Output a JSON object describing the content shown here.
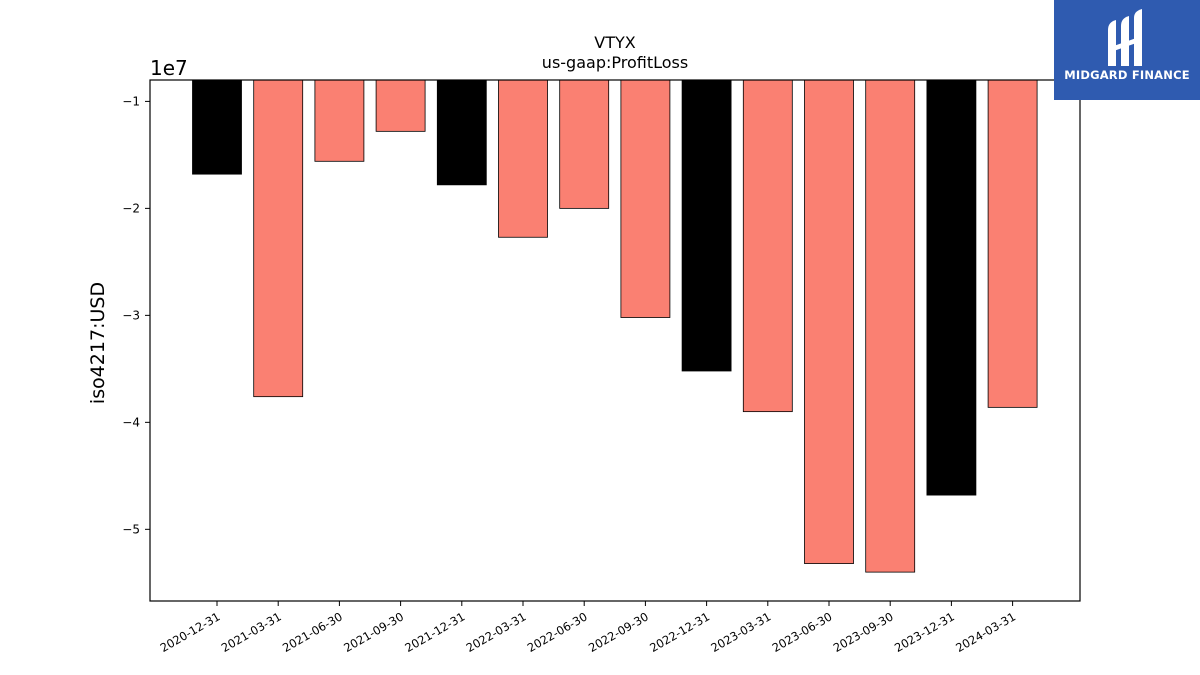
{
  "branding": {
    "logo_text": "MIDGARD FINANCE",
    "logo_icon": "midgard-logo-icon",
    "logo_bg": "#2f5bb0"
  },
  "chart_data": {
    "type": "bar",
    "title": "VTYX",
    "subtitle": "us-gaap:ProfitLoss",
    "xlabel": "",
    "ylabel": "iso4217:USD",
    "scale_note": "1e7",
    "categories": [
      "2020-12-31",
      "2021-03-31",
      "2021-06-30",
      "2021-09-30",
      "2021-12-31",
      "2022-03-31",
      "2022-06-30",
      "2022-09-30",
      "2022-12-31",
      "2023-03-31",
      "2023-06-30",
      "2023-09-30",
      "2023-12-31",
      "2024-03-31"
    ],
    "values": [
      -16800000,
      -37600000,
      -15600000,
      -12800000,
      -17800000,
      -22700000,
      -20000000,
      -30200000,
      -35200000,
      -39000000,
      -53200000,
      -54000000,
      -46800000,
      -38600000
    ],
    "bar_colors": [
      "#000000",
      "#fa8072",
      "#fa8072",
      "#fa8072",
      "#000000",
      "#fa8072",
      "#fa8072",
      "#fa8072",
      "#000000",
      "#fa8072",
      "#fa8072",
      "#fa8072",
      "#000000",
      "#fa8072"
    ],
    "yticks": [
      -10000000,
      -20000000,
      -30000000,
      -40000000,
      -50000000
    ],
    "ytick_labels": [
      "−1",
      "−2",
      "−3",
      "−4",
      "−5"
    ],
    "ylim": [
      -56700000,
      -8000000
    ],
    "grid": false,
    "legend": "none"
  }
}
